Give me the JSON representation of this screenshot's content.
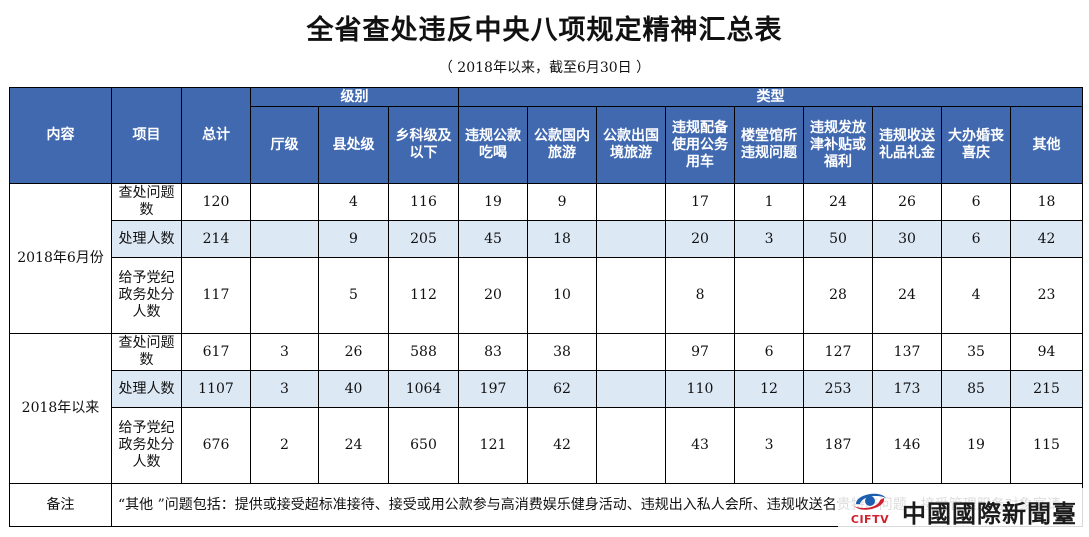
{
  "title": "全省查处违反中央八项规定精神汇总表",
  "subtitle": "（ 2018年以来，截至6月30日 ）",
  "header": {
    "content": "内容",
    "item": "项目",
    "total": "总计",
    "level_group": "级别",
    "type_group": "类型",
    "levels": [
      "厅级",
      "县处级",
      "乡科级及以下"
    ],
    "types": [
      "违规公款吃喝",
      "公款国内旅游",
      "公款出国境旅游",
      "违规配备使用公务用车",
      "楼堂馆所违规问题",
      "违规发放津补贴或福利",
      "违规收送礼品礼金",
      "大办婚丧喜庆",
      "其他"
    ]
  },
  "groups": [
    {
      "period": "2018年6月份",
      "rows": [
        {
          "item": "查处问题数",
          "total": "120",
          "levels": [
            "",
            "4",
            "116"
          ],
          "types": [
            "19",
            "9",
            "",
            "17",
            "1",
            "24",
            "26",
            "6",
            "18"
          ]
        },
        {
          "item": "处理人数",
          "total": "214",
          "levels": [
            "",
            "9",
            "205"
          ],
          "types": [
            "45",
            "18",
            "",
            "20",
            "3",
            "50",
            "30",
            "6",
            "42"
          ]
        },
        {
          "item": "给予党纪政务处分人数",
          "total": "117",
          "levels": [
            "",
            "5",
            "112"
          ],
          "types": [
            "20",
            "10",
            "",
            "8",
            "",
            "28",
            "24",
            "4",
            "23"
          ]
        }
      ]
    },
    {
      "period": "2018年以来",
      "rows": [
        {
          "item": "查处问题数",
          "total": "617",
          "levels": [
            "3",
            "26",
            "588"
          ],
          "types": [
            "83",
            "38",
            "",
            "97",
            "6",
            "127",
            "137",
            "35",
            "94"
          ]
        },
        {
          "item": "处理人数",
          "total": "1107",
          "levels": [
            "3",
            "40",
            "1064"
          ],
          "types": [
            "197",
            "62",
            "",
            "110",
            "12",
            "253",
            "173",
            "85",
            "215"
          ]
        },
        {
          "item": "给予党纪政务处分人数",
          "total": "676",
          "levels": [
            "2",
            "24",
            "650"
          ],
          "types": [
            "121",
            "42",
            "",
            "43",
            "3",
            "187",
            "146",
            "19",
            "115"
          ]
        }
      ]
    }
  ],
  "note": {
    "label": "备注",
    "text": "“其他 ”问题包括：提供或接受超标准接待、接受或用公款参与高消费娱乐健身活动、违规出入私人会所、违规收送名贵特产问题、接受管理服务对象宴请。"
  },
  "watermark": {
    "brand": "CIFTV",
    "name": "中國國際新聞臺",
    "colors": {
      "logo_red": "#d1202e",
      "logo_blue": "#1d5fae"
    }
  }
}
